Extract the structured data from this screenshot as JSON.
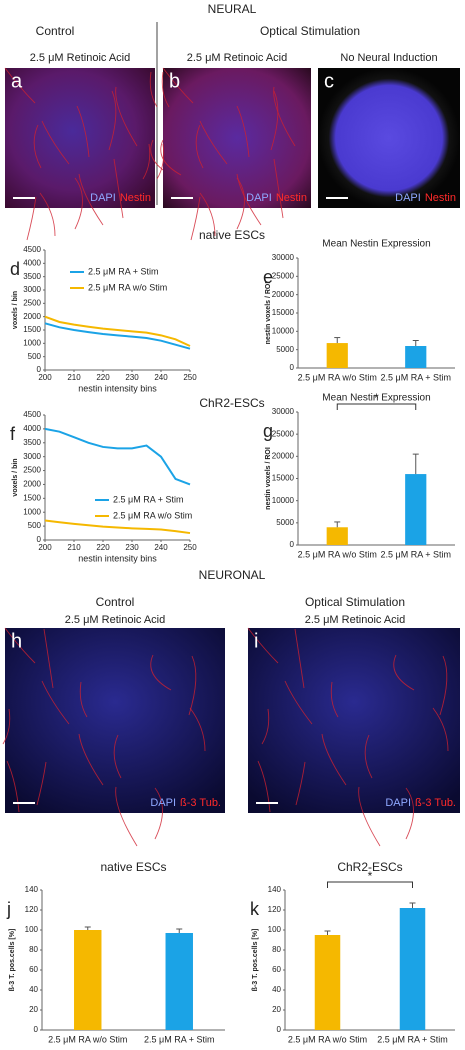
{
  "headings": {
    "neural": "NEURAL",
    "control": "Control",
    "optical": "Optical Stimulation",
    "native": "native ESCs",
    "chr2": "ChR2-ESCs",
    "neuronal": "NEURONAL",
    "control2": "Control",
    "optical2": "Optical Stimulation"
  },
  "images": [
    {
      "letter": "a",
      "caption": "2.5 μM Retinoic Acid",
      "stains": [
        "DAPI",
        "Nestin"
      ]
    },
    {
      "letter": "b",
      "caption": "2.5 μM Retinoic Acid",
      "stains": [
        "DAPI",
        "Nestin"
      ]
    },
    {
      "letter": "c",
      "caption": "No Neural Induction",
      "stains": [
        "DAPI",
        "Nestin"
      ]
    },
    {
      "letter": "h",
      "caption": "2.5 μM Retinoic Acid",
      "stains": [
        "DAPI",
        "ß-3 Tub."
      ]
    },
    {
      "letter": "i",
      "caption": "2.5 μM Retinoic Acid",
      "stains": [
        "DAPI",
        "ß-3 Tub."
      ]
    }
  ],
  "chart_data": [
    {
      "type": "line",
      "letter": "d",
      "x_label": "nestin intensity bins",
      "y_label": "voxels / bin",
      "x": [
        200,
        205,
        210,
        215,
        220,
        225,
        230,
        235,
        240,
        245,
        250
      ],
      "series": [
        {
          "name": "2.5 μM RA + Stim",
          "color": "#1ba3e6",
          "values": [
            1750,
            1600,
            1500,
            1420,
            1350,
            1300,
            1250,
            1200,
            1100,
            950,
            800
          ]
        },
        {
          "name": "2.5 μM RA w/o Stim",
          "color": "#f5b800",
          "values": [
            2000,
            1800,
            1700,
            1620,
            1550,
            1500,
            1450,
            1400,
            1300,
            1150,
            900
          ]
        }
      ],
      "xlim": [
        200,
        250
      ],
      "xticks": [
        200,
        210,
        220,
        230,
        240,
        250
      ],
      "ylim": [
        0,
        4500
      ],
      "yticks": [
        0,
        500,
        1000,
        1500,
        2000,
        2500,
        3000,
        3500,
        4000,
        4500
      ],
      "legend": "upper center"
    },
    {
      "type": "bar",
      "letter": "e",
      "title": "Mean Nestin Expression",
      "y_label": "nestin voxels / ROI",
      "categories": [
        "2.5 μM RA w/o Stim",
        "2.5 μM RA + Stim"
      ],
      "values": [
        6800,
        6000
      ],
      "errors": [
        1500,
        1500
      ],
      "colors": [
        "#f5b800",
        "#1ba3e6"
      ],
      "ylim": [
        0,
        30000
      ],
      "yticks": [
        0,
        5000,
        10000,
        15000,
        20000,
        25000,
        30000
      ]
    },
    {
      "type": "line",
      "letter": "f",
      "x_label": "nestin intensity bins",
      "y_label": "voxels / bin",
      "x": [
        200,
        205,
        210,
        215,
        220,
        225,
        230,
        235,
        240,
        245,
        250
      ],
      "series": [
        {
          "name": "2.5 μM RA + Stim",
          "color": "#1ba3e6",
          "values": [
            4000,
            3900,
            3700,
            3500,
            3350,
            3300,
            3300,
            3400,
            3000,
            2200,
            2000
          ]
        },
        {
          "name": "2.5 μM RA w/o Stim",
          "color": "#f5b800",
          "values": [
            700,
            640,
            580,
            530,
            480,
            450,
            420,
            400,
            380,
            320,
            250
          ]
        }
      ],
      "xlim": [
        200,
        250
      ],
      "xticks": [
        200,
        210,
        220,
        230,
        240,
        250
      ],
      "ylim": [
        0,
        4500
      ],
      "yticks": [
        0,
        500,
        1000,
        1500,
        2000,
        2500,
        3000,
        3500,
        4000,
        4500
      ],
      "legend": "lower right"
    },
    {
      "type": "bar",
      "letter": "g",
      "title": "Mean Nestin Expression",
      "y_label": "nestin voxels / ROI",
      "categories": [
        "2.5 μM RA w/o Stim",
        "2.5 μM RA + Stim"
      ],
      "values": [
        4000,
        16000
      ],
      "errors": [
        1200,
        4500
      ],
      "colors": [
        "#f5b800",
        "#1ba3e6"
      ],
      "ylim": [
        0,
        30000
      ],
      "yticks": [
        0,
        5000,
        10000,
        15000,
        20000,
        25000,
        30000
      ],
      "annotation": "*"
    },
    {
      "type": "bar",
      "letter": "j",
      "title": "native ESCs",
      "y_label": "ß-3 T. pos.cells [%]",
      "categories": [
        "2.5 μM RA w/o Stim",
        "2.5 μM RA + Stim"
      ],
      "values": [
        100,
        97
      ],
      "errors": [
        3,
        4
      ],
      "colors": [
        "#f5b800",
        "#1ba3e6"
      ],
      "ylim": [
        0,
        140
      ],
      "yticks": [
        0,
        20,
        40,
        60,
        80,
        100,
        120,
        140
      ]
    },
    {
      "type": "bar",
      "letter": "k",
      "title": "ChR2-ESCs",
      "y_label": "ß-3 T. pos.cells [%]",
      "categories": [
        "2.5 μM RA w/o Stim",
        "2.5 μM RA + Stim"
      ],
      "values": [
        95,
        122
      ],
      "errors": [
        4,
        5
      ],
      "colors": [
        "#f5b800",
        "#1ba3e6"
      ],
      "ylim": [
        0,
        140
      ],
      "yticks": [
        0,
        20,
        40,
        60,
        80,
        100,
        120,
        140
      ],
      "annotation": "*"
    }
  ]
}
